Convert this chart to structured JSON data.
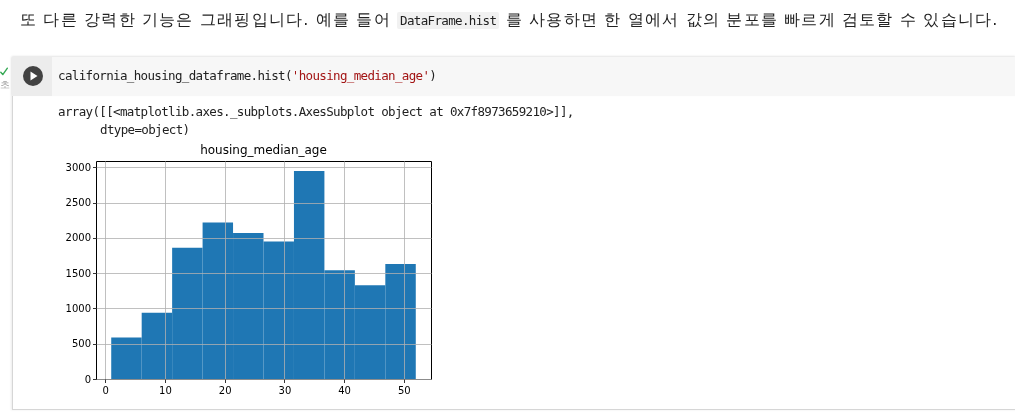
{
  "chart_data": {
    "type": "histogram",
    "title": "housing_median_age",
    "bins": [
      1,
      6.1,
      11.2,
      16.3,
      21.4,
      26.5,
      31.6,
      36.7,
      41.8,
      46.9,
      52
    ],
    "values": [
      590,
      940,
      1860,
      2220,
      2070,
      1950,
      2950,
      1540,
      1330,
      1630
    ],
    "color": "#1f77b4",
    "xlim": [
      -1.55,
      54.55
    ],
    "xticks": [
      0,
      10,
      20,
      30,
      40,
      50
    ],
    "ylim": [
      0,
      3090
    ],
    "yticks": [
      0,
      500,
      1000,
      1500,
      2000,
      2500,
      3000
    ],
    "grid": true,
    "annotations": [
      "또 다른 강력한 기능은 그래핑입니다. 예를 들어",
      "DataFrame.hist",
      "를 사용하면 한 열에서 값의 분포를 빠르게 검토할 수 있습니다.",
      "california_housing_dataframe.hist('housing_median_age')",
      "array([[<matplotlib.axes._subplots.AxesSubplot object at 0x7f8973659210>]],",
      "dtype=object)",
      "초"
    ]
  }
}
